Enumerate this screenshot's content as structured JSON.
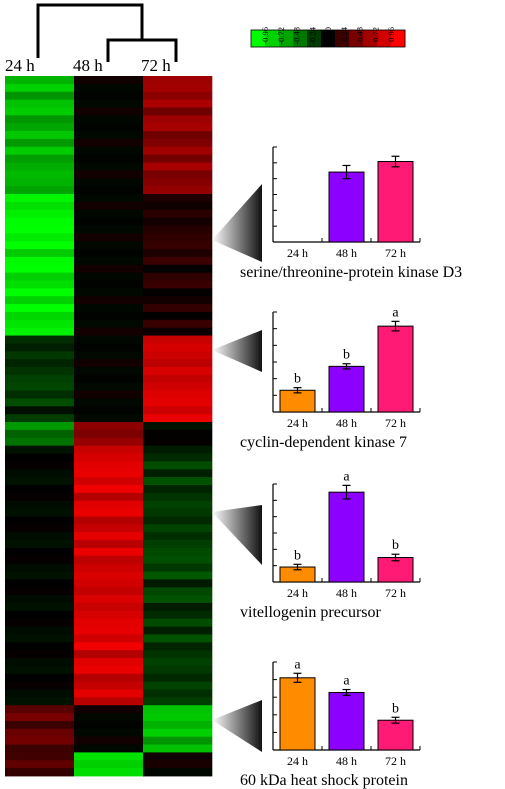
{
  "heatmap": {
    "columns": [
      "24 h",
      "48 h",
      "72 h"
    ],
    "colorbar": {
      "ticks": [
        "-0.96",
        "-0.72",
        "-0.48",
        "-0.24",
        "0.00",
        "0.24",
        "0.48",
        "0.72",
        "0.96"
      ],
      "colors": [
        "#00ff00",
        "#00d200",
        "#00a500",
        "#007800",
        "#003c00",
        "#000000",
        "#3c0000",
        "#780000",
        "#a50000",
        "#d20000",
        "#ff0000"
      ]
    },
    "blocks": [
      {
        "rows": 15,
        "values": [
          -0.7,
          0.0,
          0.55
        ]
      },
      {
        "rows": 18,
        "values": [
          -0.92,
          0.0,
          0.12
        ]
      },
      {
        "rows": 11,
        "values": [
          -0.18,
          0.0,
          0.8
        ]
      },
      {
        "rows": 3,
        "values": [
          -0.5,
          0.55,
          0.0
        ]
      },
      {
        "rows": 33,
        "values": [
          0.0,
          0.82,
          -0.22
        ]
      },
      {
        "rows": 6,
        "values": [
          0.35,
          0.0,
          -0.7
        ]
      },
      {
        "rows": 3,
        "values": [
          0.3,
          -0.85,
          0.05
        ]
      }
    ],
    "row_variation": [
      0,
      0.08,
      -0.06,
      0.12,
      -0.1,
      0.04,
      -0.12,
      0.1,
      -0.04,
      0.06,
      -0.08,
      0.02,
      0.1,
      -0.02,
      0.07,
      -0.11,
      0.03,
      0.09,
      -0.05,
      0.0
    ]
  },
  "chart_data": [
    {
      "type": "bar",
      "title": "serine/threonine-protein kinase D3",
      "categories": [
        "24 h",
        "48 h",
        "72 h"
      ],
      "values": [
        0,
        2.65,
        3.05
      ],
      "errors": [
        0,
        0.25,
        0.2
      ],
      "letters": [
        "",
        "",
        ""
      ],
      "colors": [
        "#ff8c00",
        "#8b00ff",
        "#ff1a75"
      ],
      "ylim": [
        0,
        3.6
      ],
      "yticks": 6
    },
    {
      "type": "bar",
      "title": "cyclin-dependent kinase 7",
      "categories": [
        "24 h",
        "48 h",
        "72 h"
      ],
      "values": [
        1.0,
        2.1,
        3.95
      ],
      "errors": [
        0.12,
        0.12,
        0.22
      ],
      "letters": [
        "b",
        "b",
        "a"
      ],
      "colors": [
        "#ff8c00",
        "#8b00ff",
        "#ff1a75"
      ],
      "ylim": [
        0,
        4.6
      ],
      "yticks": 6
    },
    {
      "type": "bar",
      "title": "vitellogenin precursor",
      "categories": [
        "24 h",
        "48 h",
        "72 h"
      ],
      "values": [
        0.55,
        3.3,
        0.9
      ],
      "errors": [
        0.1,
        0.25,
        0.12
      ],
      "letters": [
        "b",
        "a",
        "b"
      ],
      "colors": [
        "#ff8c00",
        "#8b00ff",
        "#ff1a75"
      ],
      "ylim": [
        0,
        3.6
      ],
      "yticks": 6
    },
    {
      "type": "bar",
      "title": "60 kDa heat shock protein",
      "categories": [
        "24 h",
        "48 h",
        "72 h"
      ],
      "values": [
        3.2,
        2.55,
        1.32
      ],
      "errors": [
        0.2,
        0.13,
        0.13
      ],
      "letters": [
        "a",
        "a",
        "b"
      ],
      "colors": [
        "#ff8c00",
        "#8b00ff",
        "#ff1a75"
      ],
      "ylim": [
        0,
        3.9
      ],
      "yticks": 5
    }
  ]
}
